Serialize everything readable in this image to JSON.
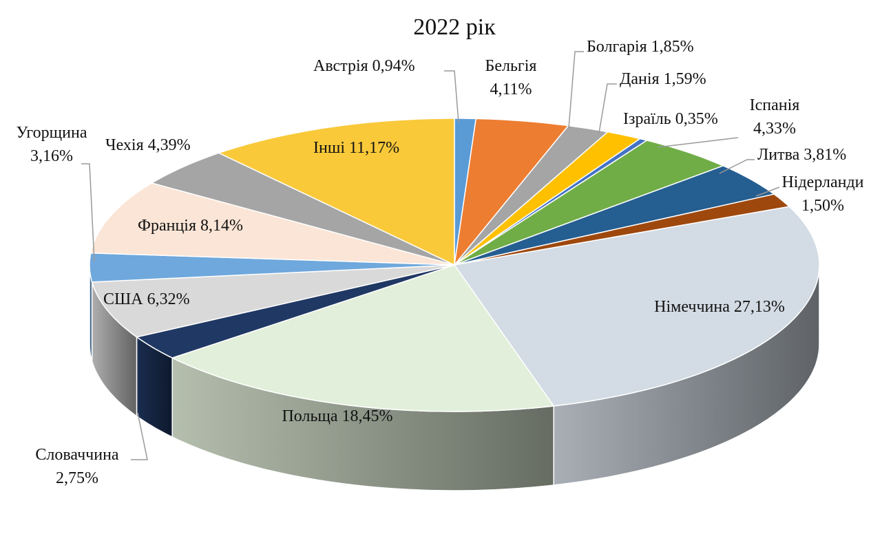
{
  "chart_data": {
    "type": "pie",
    "title": "2022 рік",
    "categories": [
      "Австрія",
      "Бельгія",
      "Болгарія",
      "Данія",
      "Ізраїль",
      "Іспанія",
      "Литва",
      "Нідерланди",
      "Німеччина",
      "Польща",
      "Словаччина",
      "США",
      "Угорщина",
      "Франція",
      "Чехія",
      "Інші"
    ],
    "values": [
      0.94,
      4.11,
      1.85,
      1.59,
      0.35,
      4.33,
      3.81,
      1.5,
      27.13,
      18.45,
      2.75,
      6.32,
      3.16,
      8.14,
      4.39,
      11.17
    ],
    "value_labels": [
      "0,94%",
      "4,11%",
      "1,85%",
      "1,59%",
      "0,35%",
      "4,33%",
      "3,81%",
      "1,50%",
      "27,13%",
      "18,45%",
      "2,75%",
      "6,32%",
      "3,16%",
      "8,14%",
      "4,39%",
      "11,17%"
    ],
    "colors": [
      "#5b9bd5",
      "#ed7d31",
      "#a5a5a5",
      "#ffc000",
      "#4472c4",
      "#70ad47",
      "#255e91",
      "#9e480e",
      "#d3dbe4",
      "#e2efda",
      "#203864",
      "#d9d9d9",
      "#6fa8dc",
      "#fbe5d6",
      "#a5a5a5",
      "#f9c93a"
    ]
  }
}
